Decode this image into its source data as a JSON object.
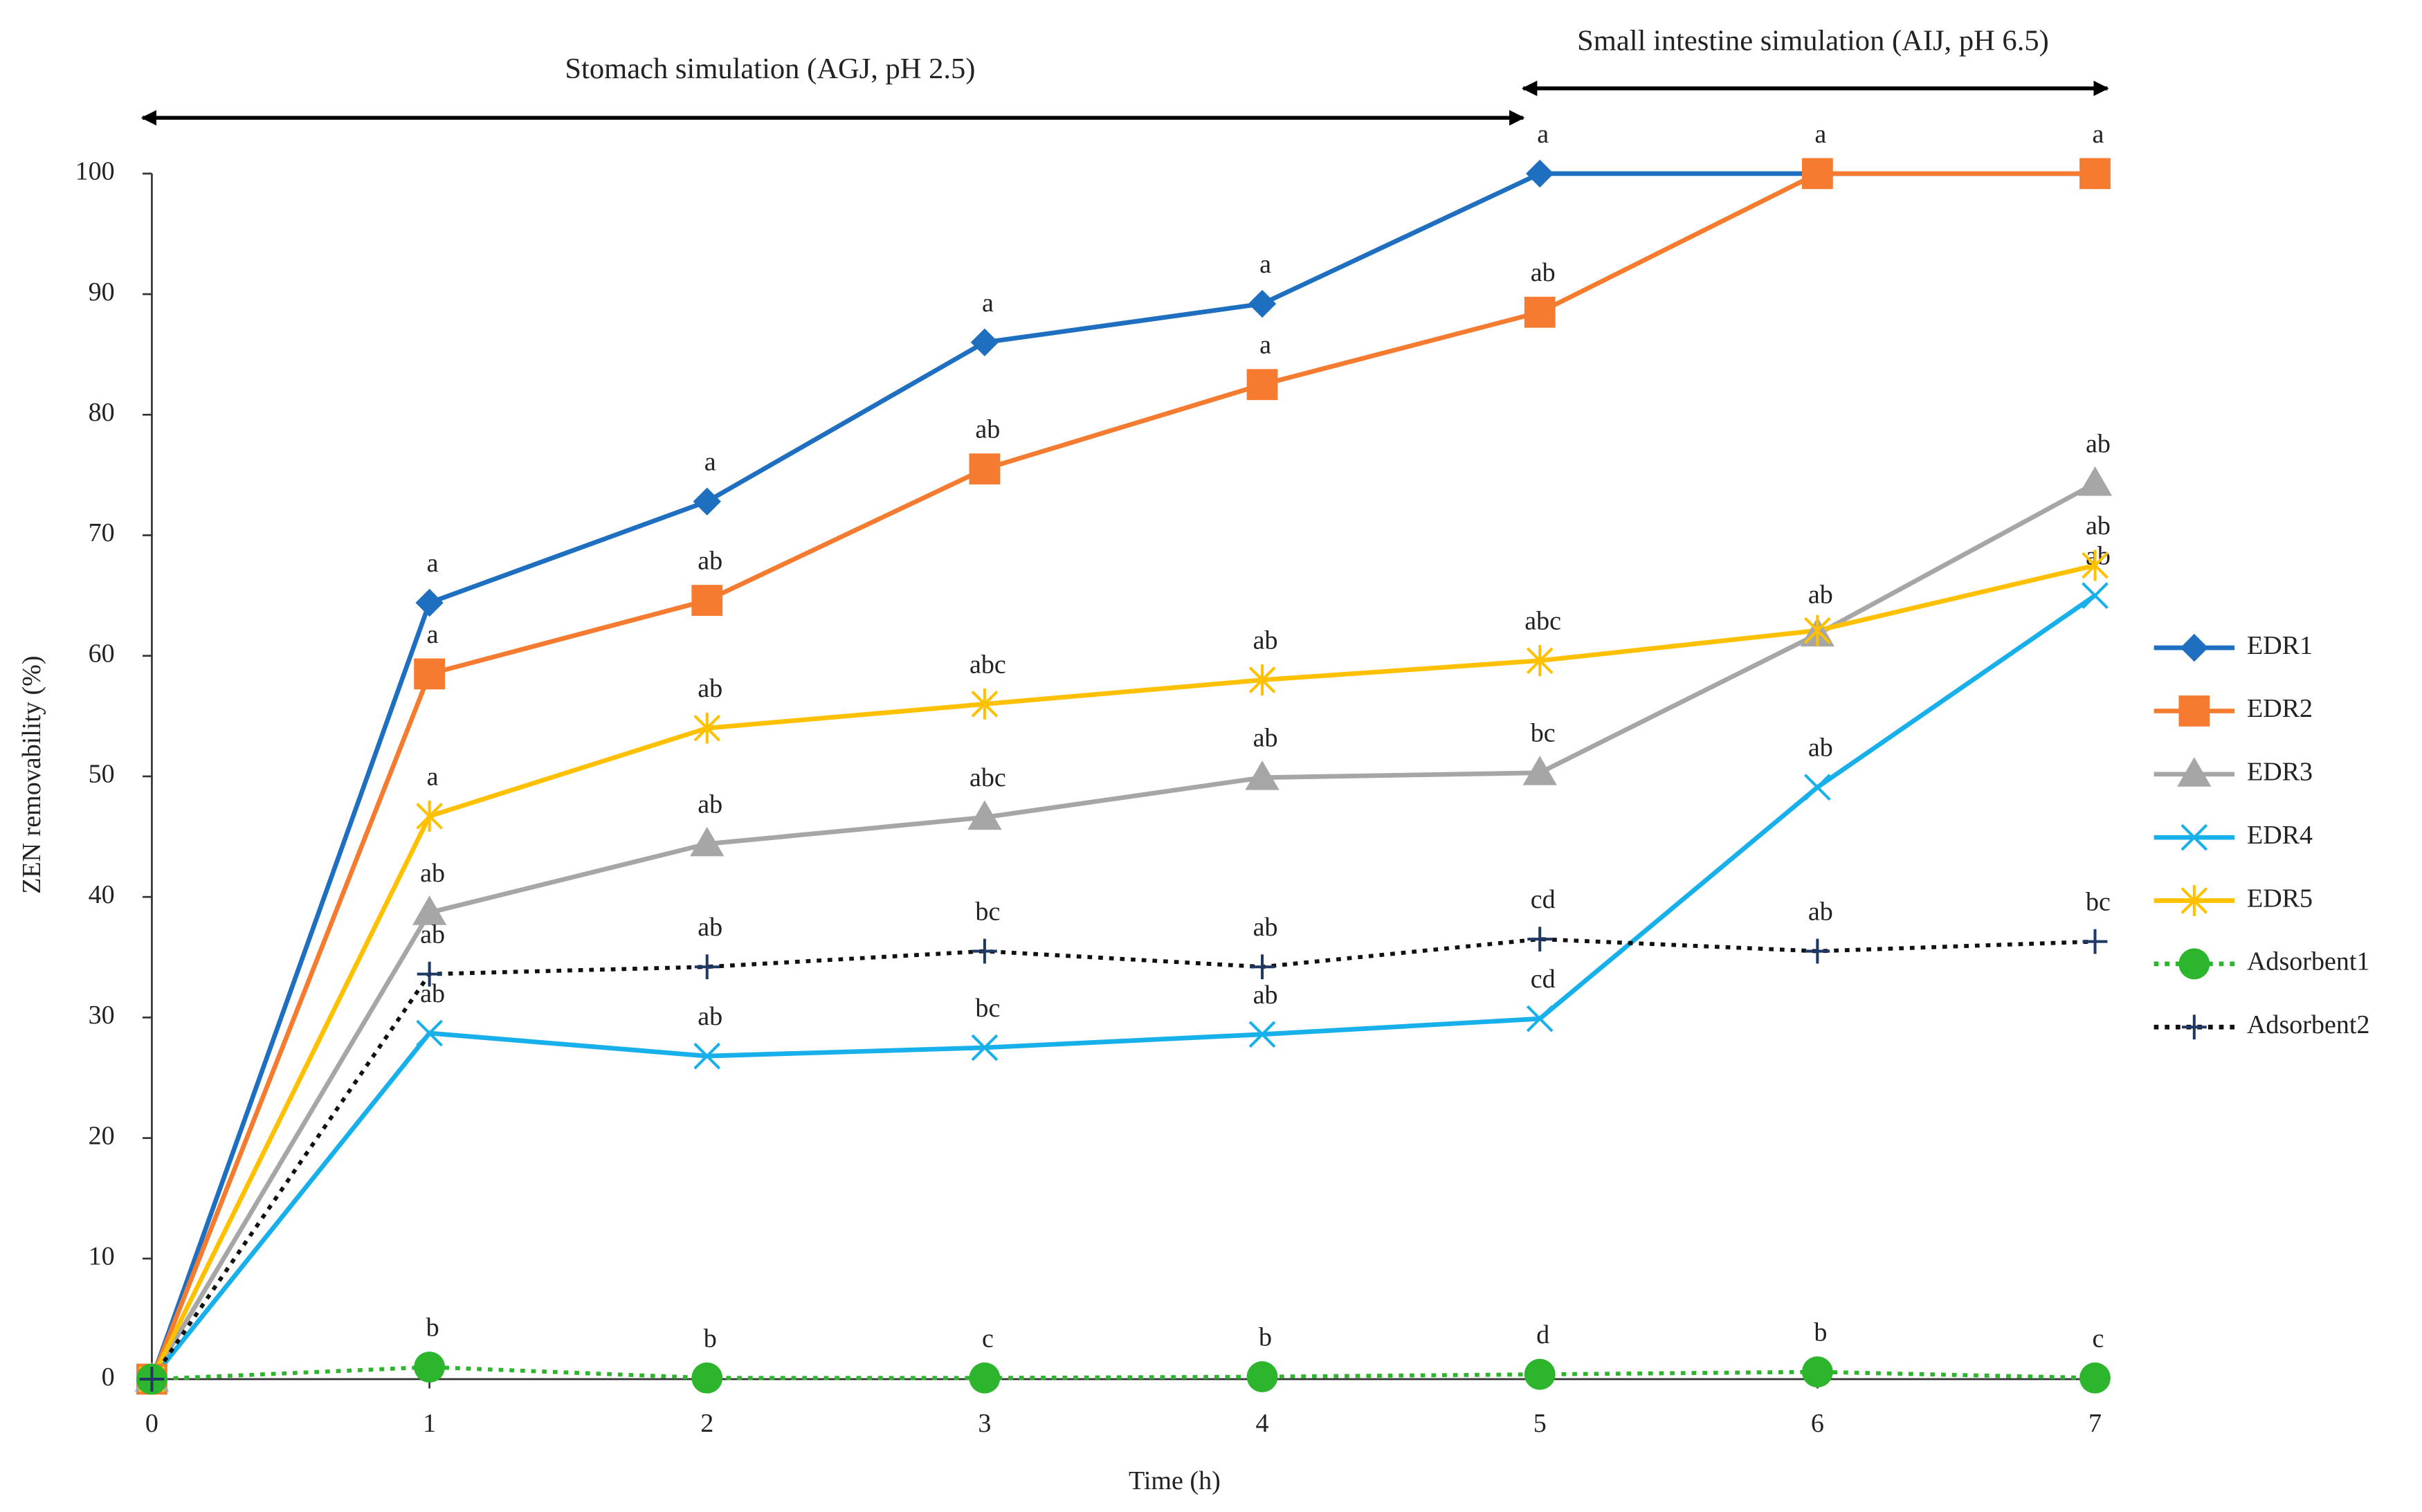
{
  "chart_data": {
    "type": "line",
    "x_label": "Time (h)",
    "y_label": "ZEN removability (%)",
    "phase_labels": [
      "Stomach simulation (AGJ, pH 2.5)",
      "Small intestine simulation (AIJ, pH 6.5)"
    ],
    "x": [
      0,
      1,
      2,
      3,
      4,
      5,
      6,
      7
    ],
    "xlim": [
      0,
      7
    ],
    "xticks": [
      0,
      1,
      2,
      3,
      4,
      5,
      6,
      7
    ],
    "ylim": [
      0,
      100
    ],
    "yticks": [
      0,
      10,
      20,
      30,
      40,
      50,
      60,
      70,
      80,
      90,
      100
    ],
    "grid": false,
    "legend": "right",
    "series": [
      {
        "name": "EDR1",
        "color": "#1f6fc0",
        "marker": "diamond",
        "dash": "solid",
        "values": [
          0,
          64.4,
          72.8,
          86.0,
          89.2,
          100,
          100,
          100
        ],
        "letters": [
          null,
          "a",
          "a",
          "a",
          "a",
          "a",
          "a",
          "a"
        ]
      },
      {
        "name": "EDR2",
        "color": "#f47b2f",
        "marker": "square",
        "dash": "solid",
        "values": [
          0,
          58.5,
          64.6,
          75.5,
          82.5,
          88.5,
          100,
          100
        ],
        "letters": [
          null,
          "a",
          "ab",
          "ab",
          "a",
          "ab",
          null,
          null
        ]
      },
      {
        "name": "EDR3",
        "color": "#a6a6a6",
        "marker": "triangle",
        "dash": "solid",
        "values": [
          0,
          38.7,
          44.4,
          46.6,
          49.9,
          50.3,
          61.8,
          74.3
        ],
        "letters": [
          null,
          "ab",
          "ab",
          "abc",
          "ab",
          "bc",
          "ab",
          "ab"
        ]
      },
      {
        "name": "EDR4",
        "color": "#18b0ea",
        "marker": "x",
        "dash": "solid",
        "values": [
          0,
          28.7,
          26.8,
          27.5,
          28.6,
          29.9,
          49.1,
          65.0
        ],
        "letters": [
          null,
          "ab",
          "ab",
          "bc",
          "ab",
          "cd",
          "ab",
          "ab"
        ]
      },
      {
        "name": "EDR5",
        "color": "#ffc000",
        "marker": "star",
        "dash": "solid",
        "values": [
          0,
          46.7,
          54.0,
          56.0,
          58.0,
          59.6,
          62.1,
          67.5
        ],
        "letters": [
          null,
          "a",
          "ab",
          "abc",
          "ab",
          "abc",
          null,
          "ab"
        ]
      },
      {
        "name": "Adsorbent1",
        "color": "#2db52d",
        "marker": "circle",
        "dash": "dotted",
        "values": [
          0,
          1.0,
          0.1,
          0.1,
          0.2,
          0.4,
          0.6,
          0.1
        ],
        "letters": [
          null,
          "b",
          "b",
          "c",
          "b",
          "d",
          "b",
          "c"
        ]
      },
      {
        "name": "Adsorbent2",
        "color": "#111111",
        "marker": "plus",
        "dash": "dotted",
        "values": [
          0,
          33.6,
          34.2,
          35.5,
          34.2,
          36.5,
          35.5,
          36.3
        ],
        "letters": [
          null,
          "ab",
          "ab",
          "bc",
          "ab",
          "cd",
          "ab",
          "bc"
        ]
      }
    ]
  }
}
